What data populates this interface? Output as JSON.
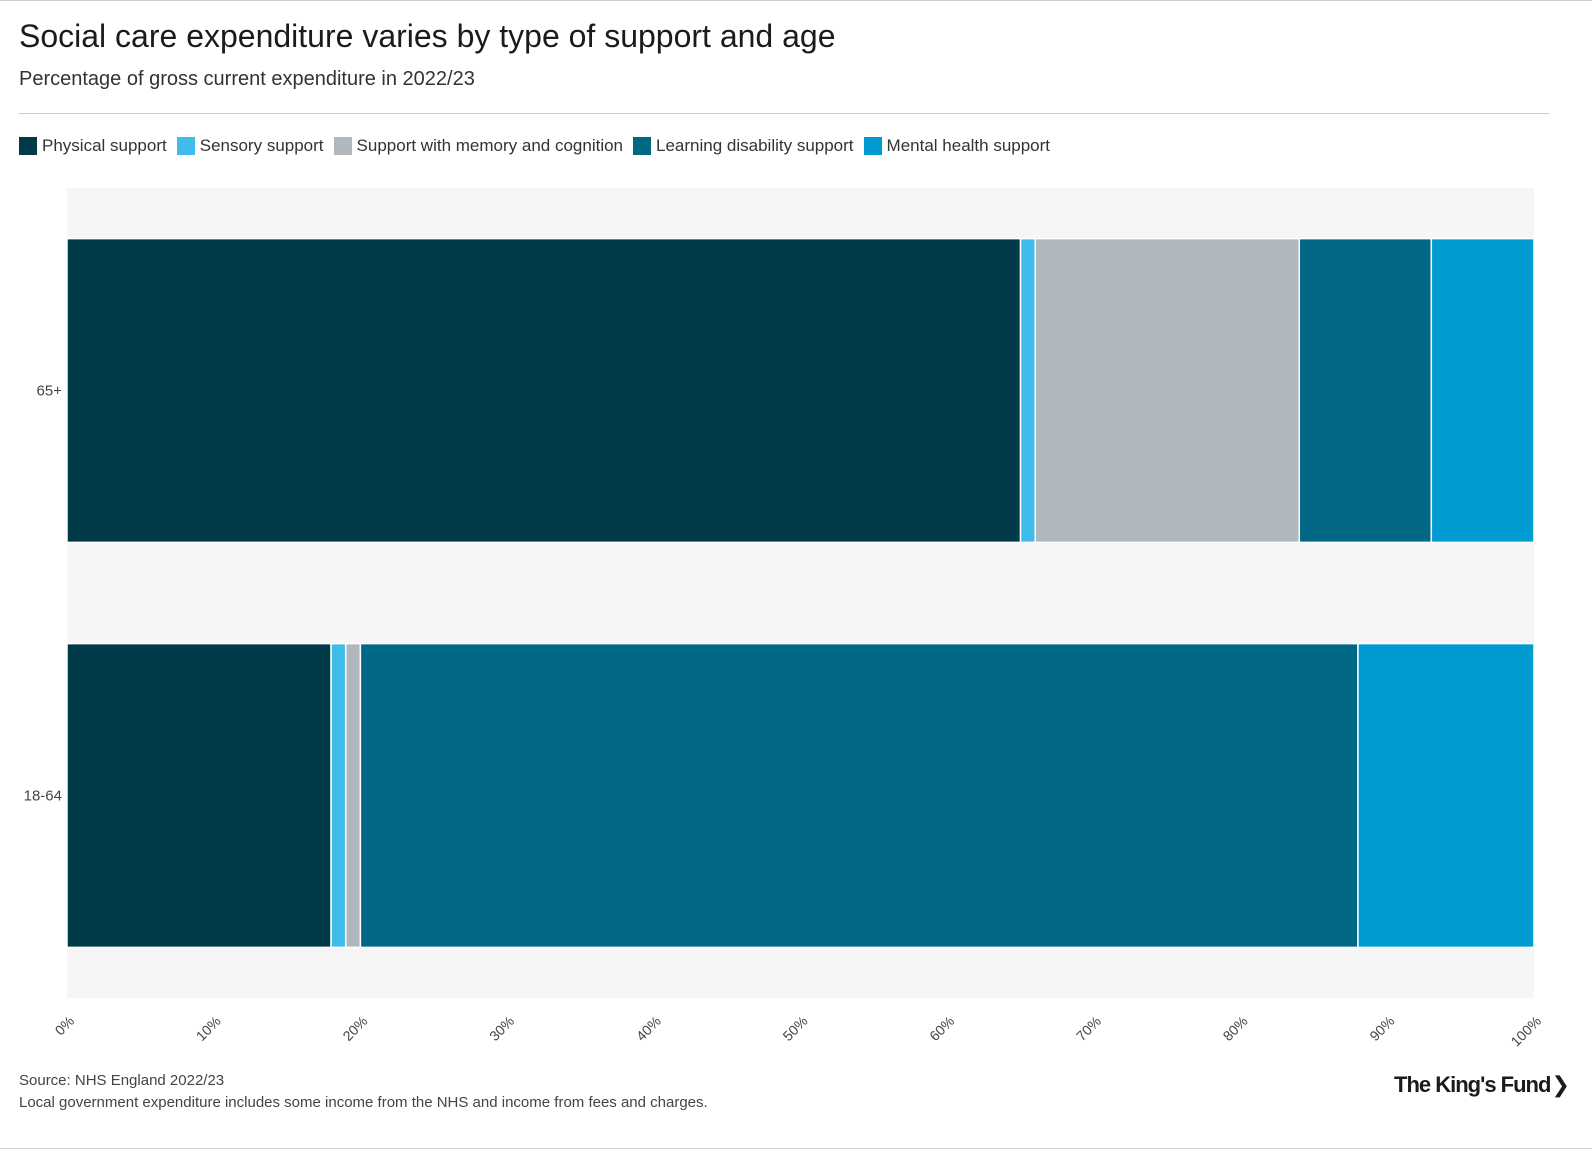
{
  "page": {
    "title": "Social care expenditure varies by type of support and age",
    "subtitle": "Percentage of gross current expenditure in 2022/23",
    "source": "Source: NHS England 2022/23",
    "note": "Local government expenditure includes some income from the NHS and income from fees and charges.",
    "logo": "The King's Fund",
    "logo_icon": "chevron-right-icon"
  },
  "colors": {
    "background": "#ffffff",
    "plot_background": "#f6f6f6",
    "separator": "#ffffff"
  },
  "chart_data": {
    "type": "bar",
    "orientation": "horizontal",
    "stacked": true,
    "categories": [
      "65+",
      "18-64"
    ],
    "series": [
      {
        "name": "Physical support",
        "color": "#003a48",
        "values": [
          65.0,
          18.0
        ]
      },
      {
        "name": "Sensory support",
        "color": "#40bceb",
        "values": [
          1.0,
          1.0
        ]
      },
      {
        "name": "Support with memory and cognition",
        "color": "#b0b7bd",
        "values": [
          18.0,
          1.0
        ]
      },
      {
        "name": "Learning disability support",
        "color": "#006785",
        "values": [
          9.0,
          68.0
        ]
      },
      {
        "name": "Mental health support",
        "color": "#009bd1",
        "values": [
          7.0,
          12.0
        ]
      }
    ],
    "xlim": [
      0,
      100
    ],
    "xticks": [
      "0%",
      "10%",
      "20%",
      "30%",
      "40%",
      "50%",
      "60%",
      "70%",
      "80%",
      "90%",
      "100%"
    ],
    "tick_values": [
      0,
      10,
      20,
      30,
      40,
      50,
      60,
      70,
      80,
      90,
      100
    ],
    "grid": false,
    "legend_position": "top-left"
  }
}
